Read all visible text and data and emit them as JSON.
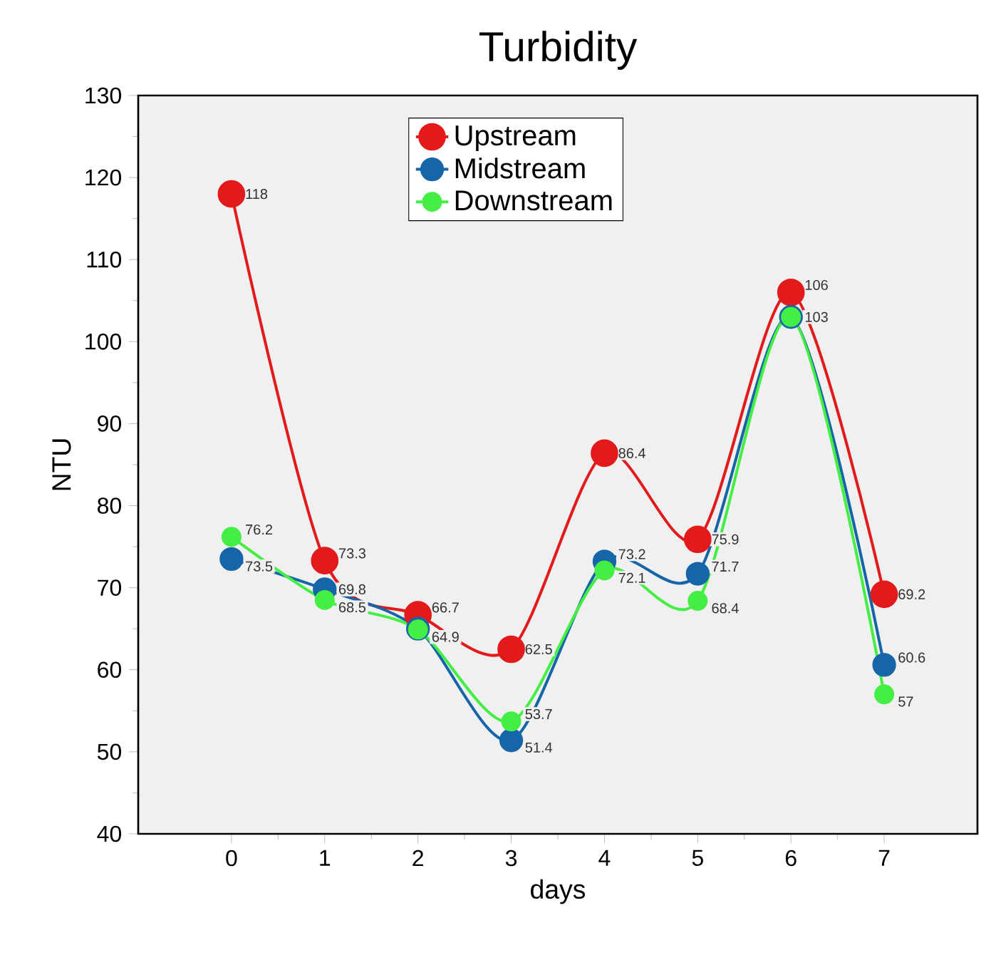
{
  "chart_data": {
    "type": "line",
    "title": "Turbidity",
    "xlabel": "days",
    "ylabel": "NTU",
    "x": [
      0,
      1,
      2,
      3,
      4,
      5,
      6,
      7
    ],
    "series": [
      {
        "name": "Upstream",
        "color": "#e31a1c",
        "values": [
          118,
          73.3,
          66.7,
          62.5,
          86.4,
          75.9,
          106,
          69.2
        ],
        "value_labels": [
          "118",
          "73.3",
          "66.7",
          "62.5",
          "86.4",
          "75.9",
          "106",
          "69.2"
        ]
      },
      {
        "name": "Midstream",
        "color": "#1565a8",
        "values": [
          73.5,
          69.8,
          65,
          51.4,
          73.2,
          71.7,
          103,
          60.6
        ],
        "value_labels": [
          "73.5",
          "69.8",
          null,
          "51.4",
          "73.2",
          "71.7",
          null,
          "60.6"
        ]
      },
      {
        "name": "Downstream",
        "color": "#44ee44",
        "values": [
          76.2,
          68.5,
          64.9,
          53.7,
          72.1,
          68.4,
          103,
          57
        ],
        "value_labels": [
          "76.2",
          "68.5",
          "64.9",
          "53.7",
          "72.1",
          "68.4",
          "103",
          "57"
        ]
      }
    ],
    "xlim": [
      -1,
      8
    ],
    "xticks": [
      0,
      1,
      2,
      3,
      4,
      5,
      6,
      7
    ],
    "ylim": [
      40,
      130
    ],
    "yticks": [
      40,
      50,
      60,
      70,
      80,
      90,
      100,
      110,
      120,
      130
    ],
    "legend": "top",
    "marker": "circle",
    "line_style": "solid",
    "grid": false
  }
}
